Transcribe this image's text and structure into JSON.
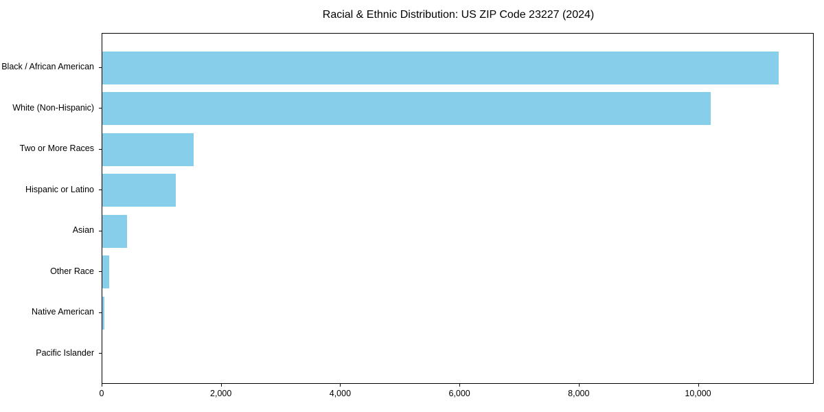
{
  "chart_data": {
    "type": "bar",
    "orientation": "horizontal",
    "title": "Racial & Ethnic Distribution: US ZIP Code 23227 (2024)",
    "categories": [
      "Black / African American",
      "White (Non-Hispanic)",
      "Two or More Races",
      "Hispanic or Latino",
      "Asian",
      "Other Race",
      "Native American",
      "Pacific Islander"
    ],
    "values": [
      11360,
      10220,
      1530,
      1230,
      420,
      115,
      30,
      0
    ],
    "xlabel": "",
    "ylabel": "",
    "xlim": [
      0,
      11940
    ],
    "xticks": [
      0,
      2000,
      4000,
      6000,
      8000,
      10000
    ],
    "xtick_labels": [
      "0",
      "2,000",
      "4,000",
      "6,000",
      "8,000",
      "10,000"
    ],
    "bar_color": "#87CEEB",
    "grid": false,
    "legend": null,
    "background_color": "#ffffff",
    "spine_color": "#000000"
  }
}
